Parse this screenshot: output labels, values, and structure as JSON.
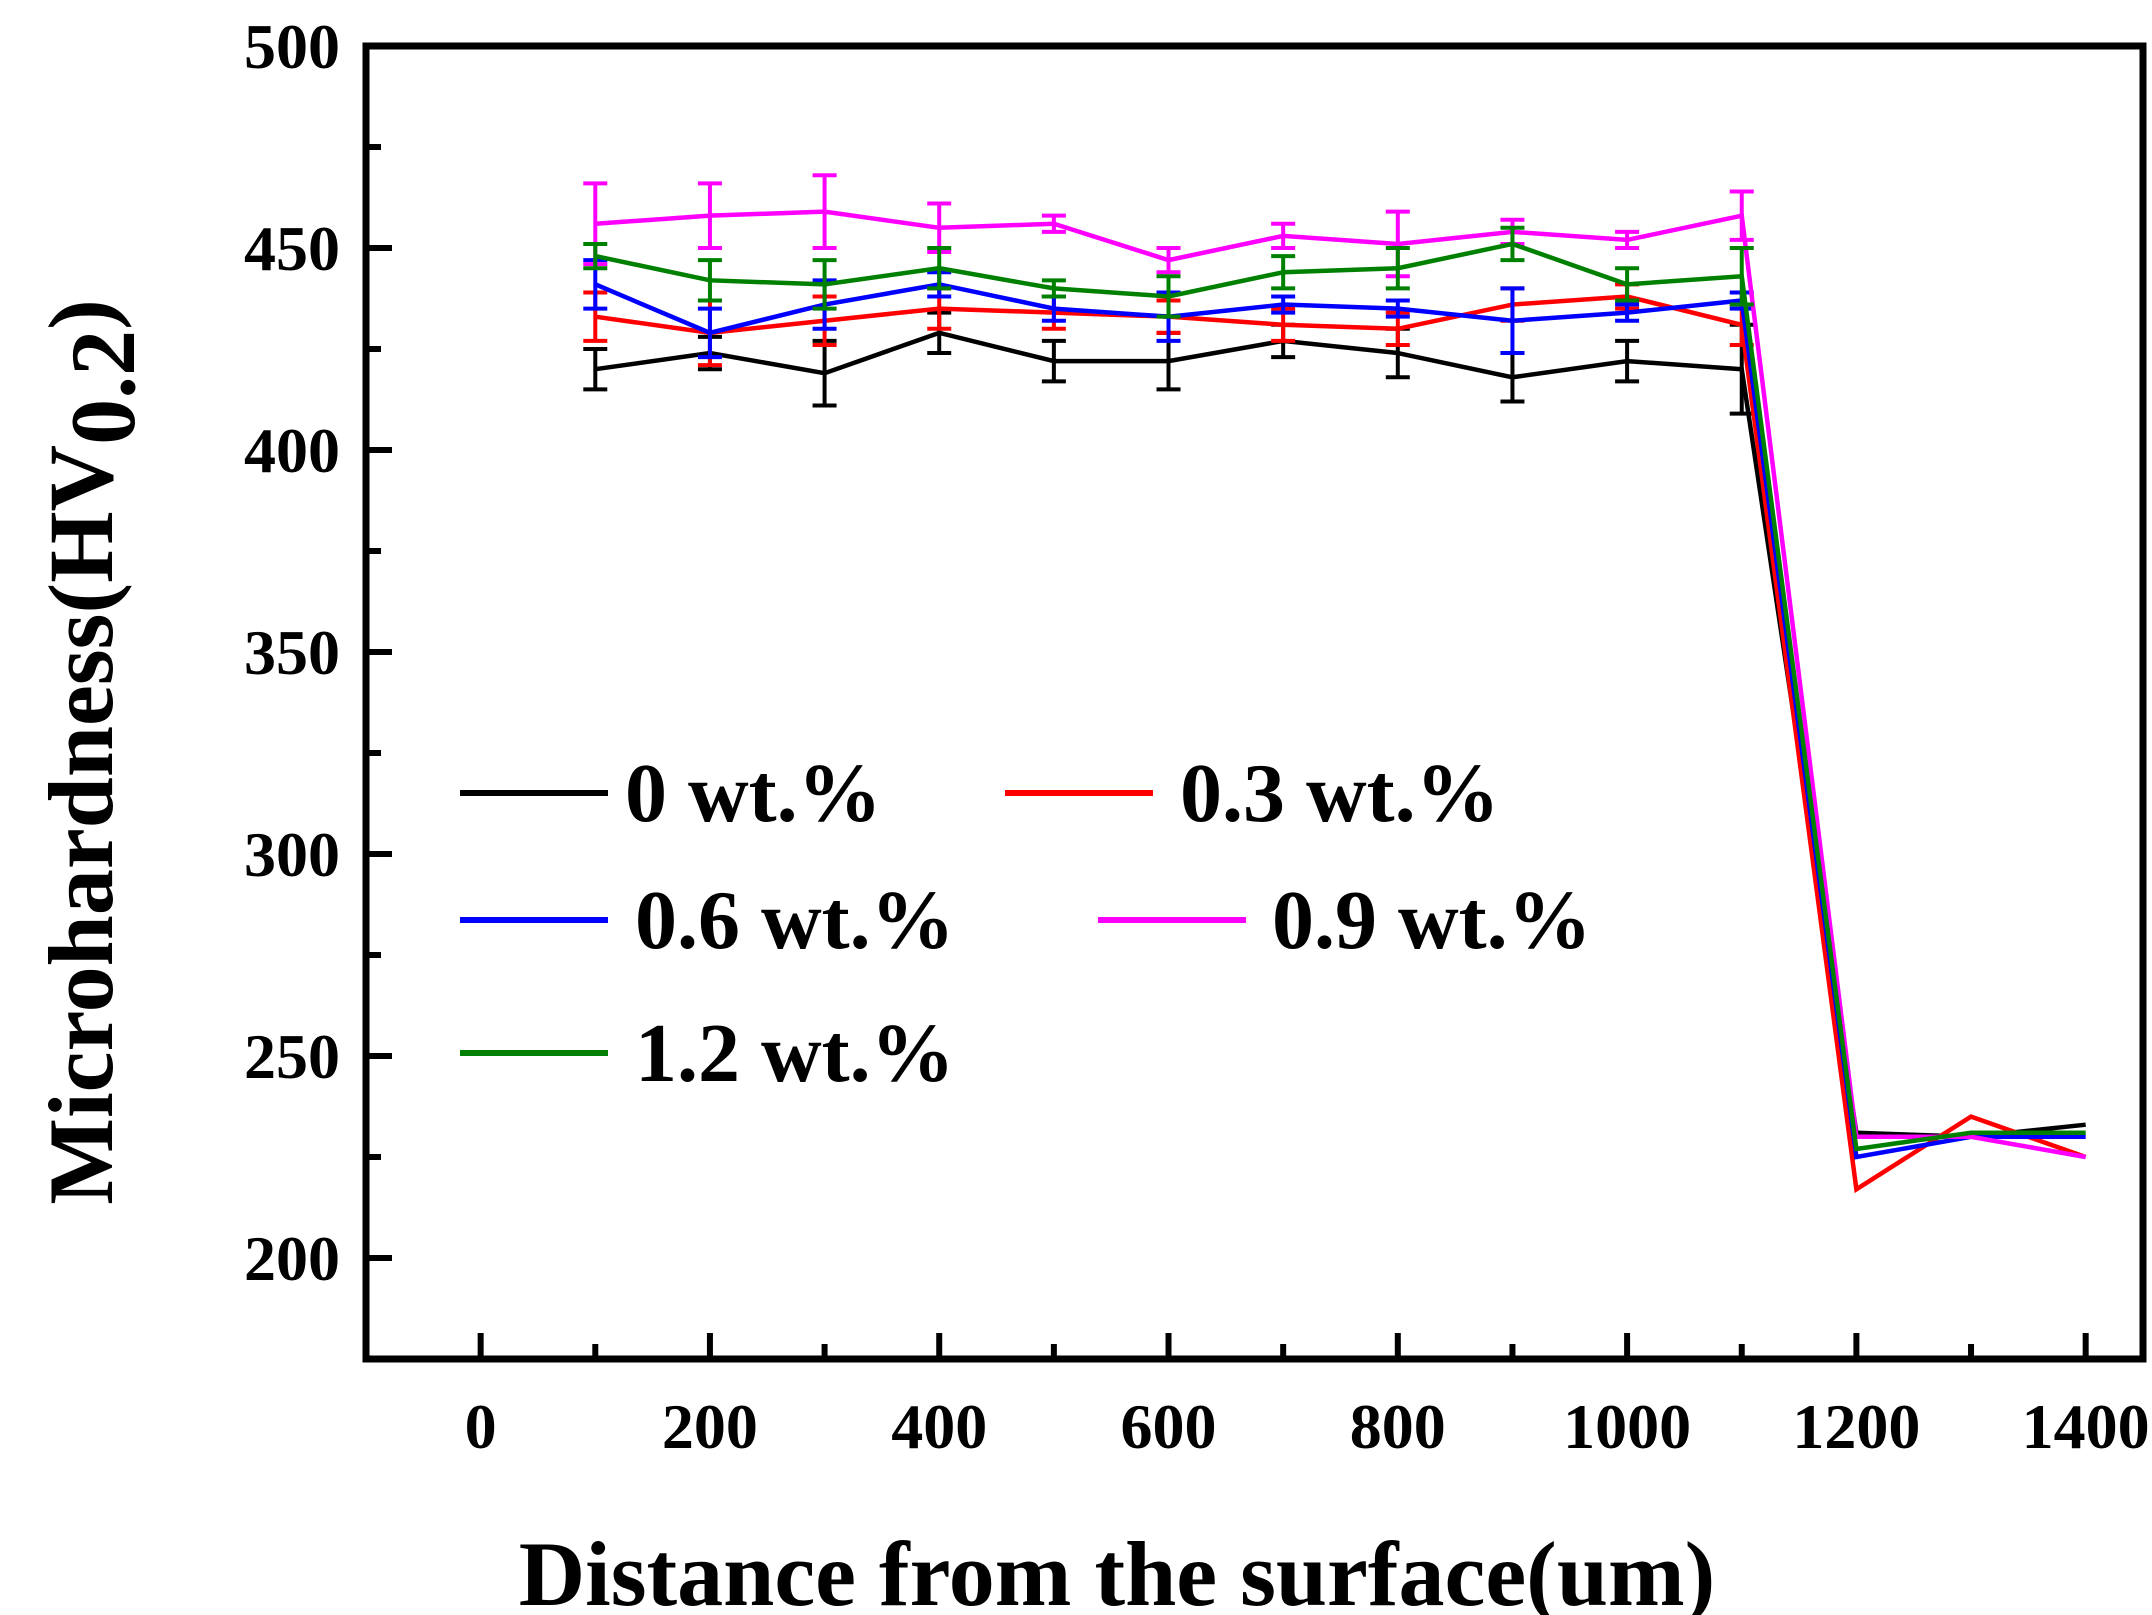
{
  "chart_data": {
    "type": "line",
    "title": "",
    "xlabel": "Distance from the surface(um)",
    "ylabel": "Microhardness(HV",
    "ylabel_subscript": "0.2",
    "ylabel_close": ")",
    "xlim": [
      -100,
      1450
    ],
    "ylim": [
      175,
      500
    ],
    "xticks": [
      0,
      200,
      400,
      600,
      800,
      1000,
      1200,
      1400
    ],
    "xtick_labels": [
      "0",
      "200",
      "400",
      "600",
      "800",
      "1000",
      "1200",
      "1400"
    ],
    "yticks": [
      200,
      250,
      300,
      350,
      400,
      450,
      500
    ],
    "ytick_labels": [
      "200",
      "250",
      "300",
      "350",
      "400",
      "450",
      "500"
    ],
    "x": [
      100,
      200,
      300,
      400,
      500,
      600,
      700,
      800,
      900,
      1000,
      1100,
      1200,
      1300,
      1400
    ],
    "error_bar_points": 11,
    "grid": false,
    "legend_position": "center-left",
    "series": [
      {
        "name": "0 wt.%",
        "color": "#000000",
        "values": [
          420,
          424,
          419,
          429,
          422,
          422,
          427,
          424,
          418,
          422,
          420,
          231,
          230,
          233
        ],
        "errors": [
          5,
          4,
          8,
          5,
          5,
          7,
          4,
          6,
          6,
          5,
          11
        ]
      },
      {
        "name": "0.3 wt.%",
        "color": "#ff0000",
        "values": [
          433,
          429,
          432,
          435,
          434,
          433,
          431,
          430,
          436,
          438,
          431,
          217,
          235,
          225
        ],
        "errors": [
          6,
          8,
          6,
          5,
          4,
          4,
          4,
          4,
          4,
          3,
          5
        ]
      },
      {
        "name": "0.6 wt.%",
        "color": "#0000ff",
        "values": [
          441,
          429,
          436,
          441,
          435,
          433,
          436,
          435,
          432,
          434,
          437,
          225,
          230,
          230
        ],
        "errors": [
          6,
          6,
          6,
          3,
          3,
          6,
          2,
          2,
          8,
          2,
          2
        ]
      },
      {
        "name": "0.9 wt.%",
        "color": "#ff00ff",
        "values": [
          456,
          458,
          459,
          455,
          456,
          447,
          453,
          451,
          454,
          452,
          458,
          230,
          230,
          225
        ],
        "errors": [
          10,
          8,
          9,
          6,
          2,
          3,
          3,
          8,
          3,
          2,
          6
        ]
      },
      {
        "name": "1.2 wt.%",
        "color": "#008000",
        "values": [
          448,
          442,
          441,
          445,
          440,
          438,
          444,
          445,
          451,
          441,
          443,
          227,
          231,
          231
        ],
        "errors": [
          3,
          5,
          6,
          5,
          2,
          5,
          4,
          5,
          4,
          4,
          7
        ]
      }
    ]
  }
}
